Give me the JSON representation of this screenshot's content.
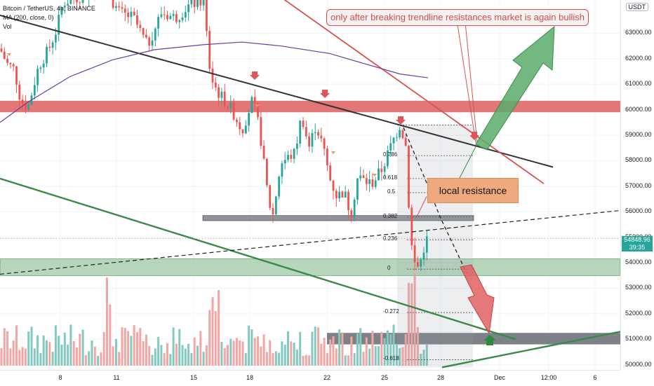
{
  "legend": {
    "symbol_line": "Bitcoin / TetherUS, 4h, BINANCE",
    "ma_line": "MA (200, close, 0)",
    "vol_line": "Vol"
  },
  "currency_badge": "USDT",
  "last_price": {
    "value": "54848.96",
    "countdown": "39:35",
    "color": "#26a69a"
  },
  "y_axis": {
    "ticks": [
      "63000.00",
      "62000.00",
      "61000.00",
      "60000.00",
      "59000.00",
      "58000.00",
      "57000.00",
      "56000.00",
      "55000.00",
      "54000.00",
      "53000.00",
      "52000.00",
      "51000.00",
      "50000.00"
    ],
    "range": [
      49800,
      64300
    ]
  },
  "x_axis": {
    "ticks": [
      "8",
      "11",
      "15",
      "18",
      "22",
      "25",
      "28",
      "Dec",
      "12:00",
      "6"
    ]
  },
  "annotations": {
    "top_note": "only after breaking trendline resistances market is again bullish",
    "local_resistance": "local resistance"
  },
  "fib_levels": [
    "0.786",
    "0.618",
    "0.5",
    "0.382",
    "0.236",
    "0",
    "-0.272",
    "-0.618"
  ],
  "colors": {
    "up": "#26a69a",
    "down": "#ef5350",
    "vol_up": "#84c9c0",
    "vol_down": "#f4a6a4",
    "resistance_zone": "#d94a4a",
    "support_zone": "#6fb07c",
    "ma": "#6a3d9a",
    "trend_dark": "#333333",
    "trend_red": "#d9534f",
    "trend_green": "#3a8a46",
    "arrow_green": "#5aab6b",
    "arrow_red": "#e06060"
  },
  "chart_data": {
    "type": "candlestick",
    "title": "Bitcoin / TetherUS, 4h, BINANCE",
    "ylim": [
      49800,
      64300
    ],
    "series": [
      {
        "name": "MA (200, close, 0)",
        "values": [
          59200,
          60200,
          61200,
          61900,
          62300,
          62500,
          62400,
          62100,
          61700,
          61200
        ]
      }
    ],
    "zones": [
      {
        "label": "resistance",
        "from": 59900,
        "to": 60300
      },
      {
        "label": "support",
        "from": 53500,
        "to": 54200
      },
      {
        "label": "target",
        "from": 50800,
        "to": 51200
      }
    ],
    "last_price": 54848.96
  }
}
